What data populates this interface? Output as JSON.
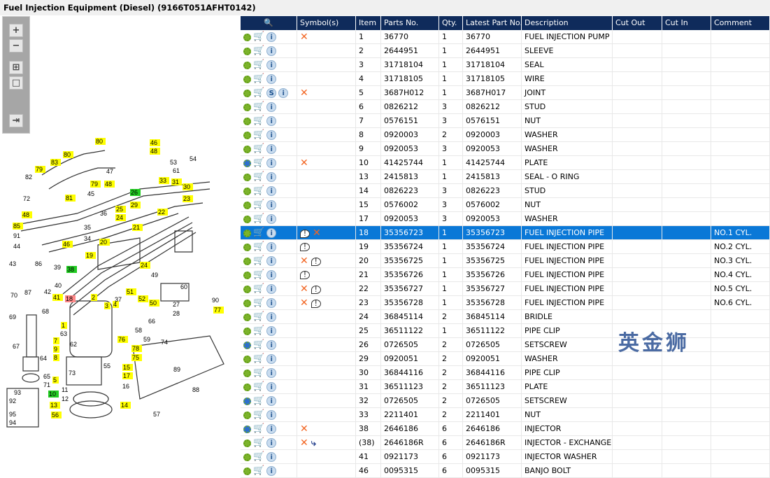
{
  "title": "Fuel Injection Equipment (Diesel) (9166T051AFHT0142)",
  "watermark": "英金狮",
  "toolbar": {
    "zoom_in": "+",
    "zoom_out": "−",
    "fit": "⊞",
    "actual": "□",
    "export": "⇥"
  },
  "columns": [
    "Symbol(s)",
    "Item",
    "Parts No.",
    "Qty.",
    "Latest Part No.",
    "Description",
    "Cut Out",
    "Cut In",
    "Comment"
  ],
  "rows": [
    {
      "gear": "green",
      "s": false,
      "sym": [
        "x"
      ],
      "item": "1",
      "part": "36770",
      "qty": "1",
      "latest": "36770",
      "desc": "FUEL INJECTION PUMP",
      "comment": ""
    },
    {
      "gear": "green",
      "s": false,
      "sym": [],
      "item": "2",
      "part": "2644951",
      "qty": "1",
      "latest": "2644951",
      "desc": "SLEEVE",
      "comment": ""
    },
    {
      "gear": "green",
      "s": false,
      "sym": [],
      "item": "3",
      "part": "31718104",
      "qty": "1",
      "latest": "31718104",
      "desc": "SEAL",
      "comment": ""
    },
    {
      "gear": "green",
      "s": false,
      "sym": [],
      "item": "4",
      "part": "31718105",
      "qty": "1",
      "latest": "31718105",
      "desc": "WIRE",
      "comment": ""
    },
    {
      "gear": "green",
      "s": true,
      "sym": [
        "x"
      ],
      "item": "5",
      "part": "3687H012",
      "qty": "1",
      "latest": "3687H017",
      "desc": "JOINT",
      "comment": ""
    },
    {
      "gear": "green",
      "s": false,
      "sym": [],
      "item": "6",
      "part": "0826212",
      "qty": "3",
      "latest": "0826212",
      "desc": "STUD",
      "comment": ""
    },
    {
      "gear": "green",
      "s": false,
      "sym": [],
      "item": "7",
      "part": "0576151",
      "qty": "3",
      "latest": "0576151",
      "desc": "NUT",
      "comment": ""
    },
    {
      "gear": "green",
      "s": false,
      "sym": [],
      "item": "8",
      "part": "0920003",
      "qty": "2",
      "latest": "0920003",
      "desc": "WASHER",
      "comment": ""
    },
    {
      "gear": "green",
      "s": false,
      "sym": [],
      "item": "9",
      "part": "0920053",
      "qty": "3",
      "latest": "0920053",
      "desc": "WASHER",
      "comment": ""
    },
    {
      "gear": "blue",
      "s": false,
      "sym": [
        "x"
      ],
      "item": "10",
      "part": "41425744",
      "qty": "1",
      "latest": "41425744",
      "desc": "PLATE",
      "comment": ""
    },
    {
      "gear": "green",
      "s": false,
      "sym": [],
      "item": "13",
      "part": "2415813",
      "qty": "1",
      "latest": "2415813",
      "desc": "SEAL - O RING",
      "comment": ""
    },
    {
      "gear": "green",
      "s": false,
      "sym": [],
      "item": "14",
      "part": "0826223",
      "qty": "3",
      "latest": "0826223",
      "desc": "STUD",
      "comment": ""
    },
    {
      "gear": "green",
      "s": false,
      "sym": [],
      "item": "15",
      "part": "0576002",
      "qty": "3",
      "latest": "0576002",
      "desc": "NUT",
      "comment": ""
    },
    {
      "gear": "green",
      "s": false,
      "sym": [],
      "item": "17",
      "part": "0920053",
      "qty": "3",
      "latest": "0920053",
      "desc": "WASHER",
      "comment": ""
    },
    {
      "gear": "green",
      "s": false,
      "sym": [
        "note",
        "x"
      ],
      "item": "18",
      "part": "35356723",
      "qty": "1",
      "latest": "35356723",
      "desc": "FUEL INJECTION PIPE",
      "comment": "NO.1 CYL.",
      "selected": true
    },
    {
      "gear": "green",
      "s": false,
      "sym": [
        "note"
      ],
      "item": "19",
      "part": "35356724",
      "qty": "1",
      "latest": "35356724",
      "desc": "FUEL INJECTION PIPE",
      "comment": "NO.2 CYL."
    },
    {
      "gear": "green",
      "s": false,
      "sym": [
        "x",
        "note"
      ],
      "item": "20",
      "part": "35356725",
      "qty": "1",
      "latest": "35356725",
      "desc": "FUEL INJECTION PIPE",
      "comment": "NO.3 CYL."
    },
    {
      "gear": "green",
      "s": false,
      "sym": [
        "note"
      ],
      "item": "21",
      "part": "35356726",
      "qty": "1",
      "latest": "35356726",
      "desc": "FUEL INJECTION PIPE",
      "comment": "NO.4 CYL."
    },
    {
      "gear": "green",
      "s": false,
      "sym": [
        "x",
        "note"
      ],
      "item": "22",
      "part": "35356727",
      "qty": "1",
      "latest": "35356727",
      "desc": "FUEL INJECTION PIPE",
      "comment": "NO.5 CYL."
    },
    {
      "gear": "green",
      "s": false,
      "sym": [
        "x",
        "note"
      ],
      "item": "23",
      "part": "35356728",
      "qty": "1",
      "latest": "35356728",
      "desc": "FUEL INJECTION PIPE",
      "comment": "NO.6 CYL."
    },
    {
      "gear": "green",
      "s": false,
      "sym": [],
      "item": "24",
      "part": "36845114",
      "qty": "2",
      "latest": "36845114",
      "desc": "BRIDLE",
      "comment": ""
    },
    {
      "gear": "green",
      "s": false,
      "sym": [],
      "item": "25",
      "part": "36511122",
      "qty": "1",
      "latest": "36511122",
      "desc": "PIPE CLIP",
      "comment": ""
    },
    {
      "gear": "blue",
      "s": false,
      "sym": [],
      "item": "26",
      "part": "0726505",
      "qty": "2",
      "latest": "0726505",
      "desc": "SETSCREW",
      "comment": ""
    },
    {
      "gear": "green",
      "s": false,
      "sym": [],
      "item": "29",
      "part": "0920051",
      "qty": "2",
      "latest": "0920051",
      "desc": "WASHER",
      "comment": ""
    },
    {
      "gear": "green",
      "s": false,
      "sym": [],
      "item": "30",
      "part": "36844116",
      "qty": "2",
      "latest": "36844116",
      "desc": "PIPE CLIP",
      "comment": ""
    },
    {
      "gear": "green",
      "s": false,
      "sym": [],
      "item": "31",
      "part": "36511123",
      "qty": "2",
      "latest": "36511123",
      "desc": "PLATE",
      "comment": ""
    },
    {
      "gear": "blue",
      "s": false,
      "sym": [],
      "item": "32",
      "part": "0726505",
      "qty": "2",
      "latest": "0726505",
      "desc": "SETSCREW",
      "comment": ""
    },
    {
      "gear": "green",
      "s": false,
      "sym": [],
      "item": "33",
      "part": "2211401",
      "qty": "2",
      "latest": "2211401",
      "desc": "NUT",
      "comment": ""
    },
    {
      "gear": "blue",
      "s": false,
      "sym": [
        "x"
      ],
      "item": "38",
      "part": "2646186",
      "qty": "6",
      "latest": "2646186",
      "desc": "INJECTOR",
      "comment": ""
    },
    {
      "gear": "green",
      "s": false,
      "sym": [
        "x",
        "arrow"
      ],
      "item": "(38)",
      "part": "2646186R",
      "qty": "6",
      "latest": "2646186R",
      "desc": "INJECTOR - EXCHANGE",
      "comment": ""
    },
    {
      "gear": "green",
      "s": false,
      "sym": [],
      "item": "41",
      "part": "0921173",
      "qty": "6",
      "latest": "0921173",
      "desc": "INJECTOR WASHER",
      "comment": ""
    },
    {
      "gear": "green",
      "s": false,
      "sym": [],
      "item": "46",
      "part": "0095315",
      "qty": "6",
      "latest": "0095315",
      "desc": "BANJO BOLT",
      "comment": ""
    }
  ],
  "callouts": [
    "80",
    "46",
    "48",
    "79",
    "83",
    "80",
    "81",
    "79",
    "48",
    "26",
    "33",
    "31",
    "30",
    "23",
    "25",
    "24",
    "29",
    "22",
    "48",
    "85",
    "46",
    "21",
    "20",
    "19",
    "38",
    "41",
    "18",
    "24",
    "51",
    "52",
    "50",
    "2",
    "3",
    "4",
    "1",
    "7",
    "9",
    "8",
    "10",
    "5",
    "13",
    "56",
    "14",
    "15",
    "17",
    "75",
    "78",
    "76",
    "77",
    "60",
    "47",
    "53",
    "54",
    "61",
    "82",
    "72",
    "91",
    "44",
    "43",
    "39",
    "40",
    "42",
    "70",
    "87",
    "69",
    "67",
    "64",
    "65",
    "71",
    "93",
    "92",
    "95",
    "94",
    "11",
    "12",
    "55",
    "73",
    "16",
    "57",
    "88",
    "89",
    "90",
    "74",
    "58",
    "59",
    "66",
    "49",
    "37",
    "27",
    "28",
    "45",
    "35",
    "34",
    "36",
    "63",
    "62",
    "68",
    "86"
  ]
}
